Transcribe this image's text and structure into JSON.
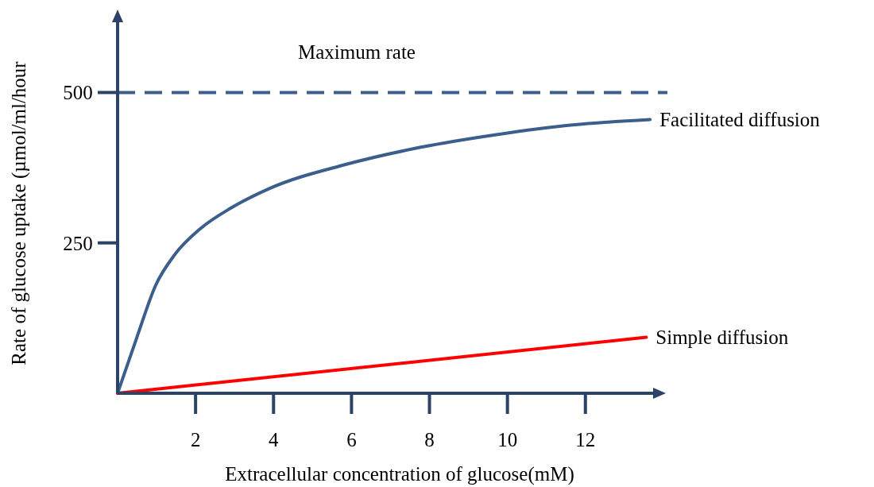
{
  "chart_data": {
    "type": "line",
    "xlabel": "Extracellular concentration of glucose(mM)",
    "ylabel": "Rate of glucose uptake (µmol/ml/hour",
    "x": [
      0,
      0.49,
      0.98,
      1.46,
      2.13,
      2.91,
      3.88,
      5.83,
      7.78,
      9.72,
      11.67,
      13.66
    ],
    "series": [
      {
        "name": "Facilitated diffusion",
        "color": "#3b5e8c",
        "values": [
          0,
          92,
          180,
          230,
          274,
          308,
          340,
          380,
          409,
          430,
          446,
          455
        ]
      },
      {
        "name": "Simple diffusion",
        "color": "#ff0000",
        "x": [
          0,
          13.56
        ],
        "values": [
          0,
          93
        ]
      }
    ],
    "xlim": [
      0,
      13.9
    ],
    "ylim": [
      0,
      630
    ],
    "xticks": [
      2,
      4,
      6,
      8,
      10,
      12
    ],
    "yticks": [
      250,
      500
    ],
    "ref_lines": [
      {
        "axis": "y",
        "value": 500,
        "label": "Maximum rate",
        "color": "#3b5e8c",
        "line_style": "dashed"
      }
    ],
    "grid": false,
    "legend": false,
    "marker": "none",
    "line_style": "solid"
  }
}
